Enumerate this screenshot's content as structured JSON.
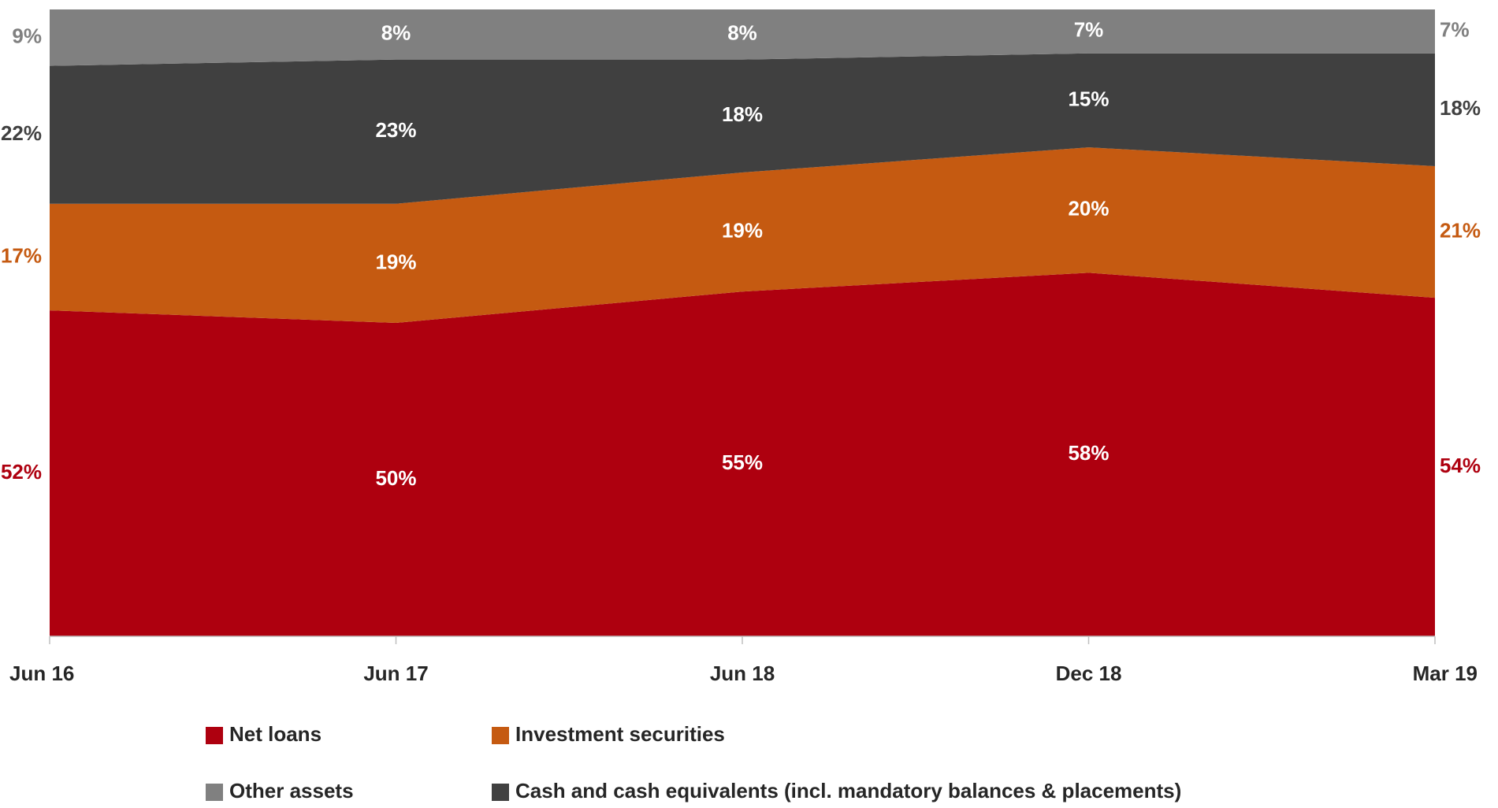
{
  "chart_data": {
    "type": "area",
    "stacked": true,
    "categories": [
      "Jun 16",
      "Jun 17",
      "Jun 18",
      "Dec 18",
      "Mar 19"
    ],
    "series": [
      {
        "name": "Net loans",
        "color": "#ae000f",
        "values": [
          52,
          50,
          55,
          58,
          54
        ],
        "value_labels": [
          "52%",
          "50%",
          "55%",
          "58%",
          "54%"
        ]
      },
      {
        "name": "Investment securities",
        "color": "#c55a11",
        "values": [
          17,
          19,
          19,
          20,
          21
        ],
        "value_labels": [
          "17%",
          "19%",
          "19%",
          "20%",
          "21%"
        ]
      },
      {
        "name": "Cash and cash equivalents (incl. mandatory balances & placements)",
        "color": "#404040",
        "values": [
          22,
          23,
          18,
          15,
          18
        ],
        "value_labels": [
          "22%",
          "23%",
          "18%",
          "15%",
          "18%"
        ]
      },
      {
        "name": "Other assets",
        "color": "#808080",
        "values": [
          9,
          8,
          8,
          7,
          7
        ],
        "value_labels": [
          "9%",
          "8%",
          "8%",
          "7%",
          "7%"
        ]
      }
    ]
  }
}
